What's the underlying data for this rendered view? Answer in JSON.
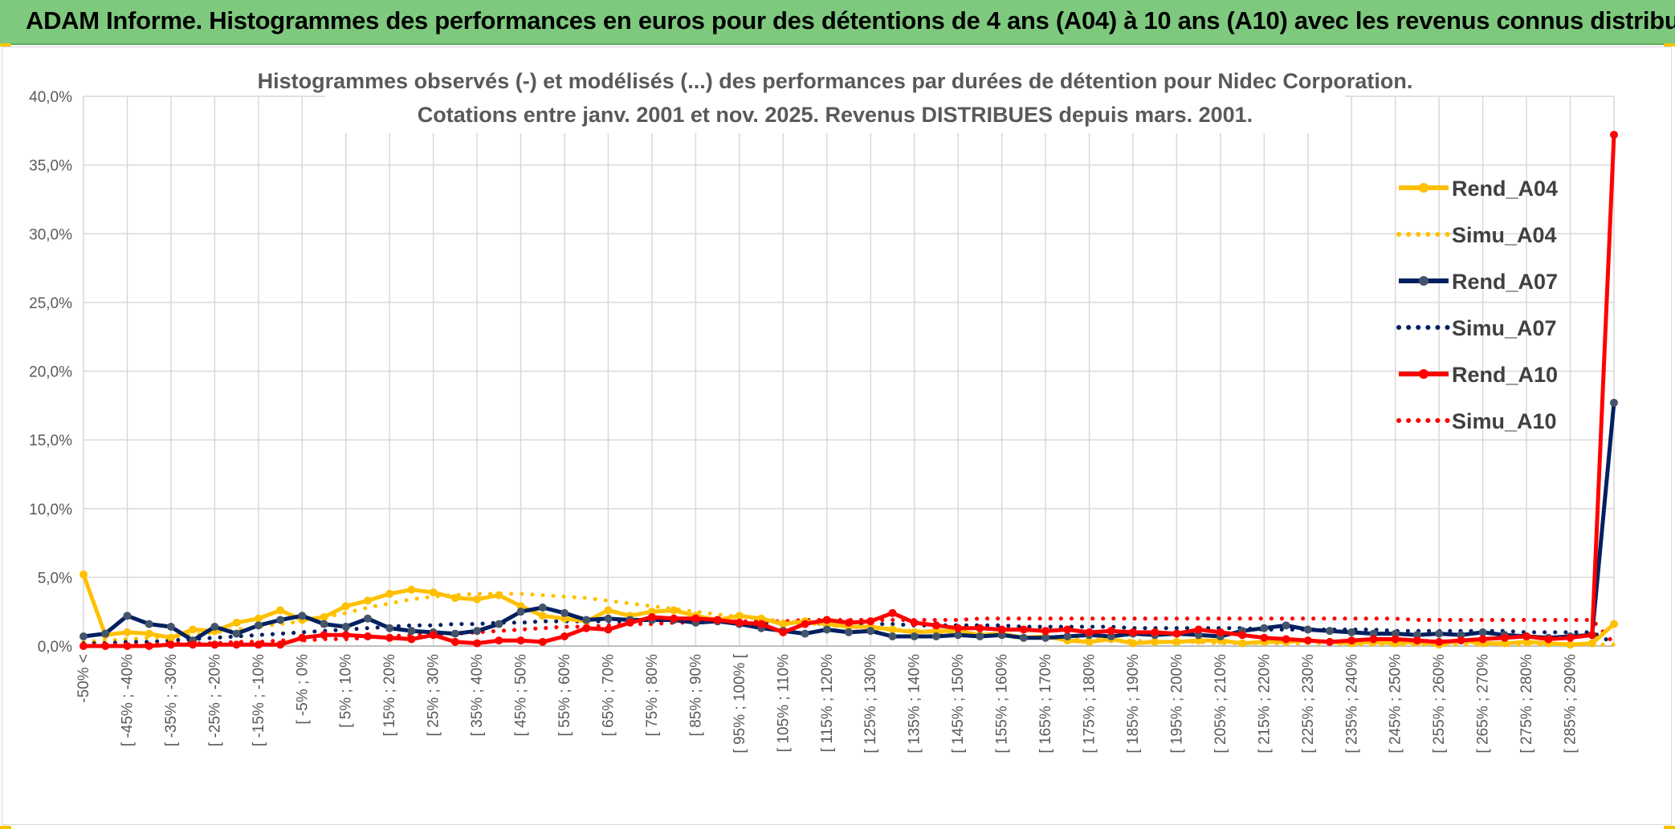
{
  "banner": {
    "title": "ADAM Informe. Histogrammes des performances en euros pour des détentions de 4 ans (A04) à 10 ans (A10) avec les revenus connus distribués"
  },
  "chart_data": {
    "type": "line",
    "title_line1": "Histogrammes observés (-) et modélisés (...) des performances par durées de détention pour Nidec Corporation.",
    "title_line2": "Cotations entre janv. 2001 et nov. 2025. Revenus DISTRIBUES depuis mars. 2001.",
    "ylim": [
      0,
      40
    ],
    "yticks": [
      "0,0%",
      "5,0%",
      "10,0%",
      "15,0%",
      "20,0%",
      "25,0%",
      "30,0%",
      "35,0%",
      "40,0%"
    ],
    "grid": true,
    "legend_position": "right",
    "x_labels": [
      "-50% <",
      "[ -45% ; -40%",
      "[ -35% ; -30%",
      "[ -25% ; -20%",
      "[ -15% ; -10%",
      "[ -5% ; 0%",
      "[ 5% ; 10%",
      "[ 15% ; 20%",
      "[ 25% ; 30%",
      "[ 35% ; 40%",
      "[ 45% ; 50%",
      "[ 55% ; 60%",
      "[ 65% ; 70%",
      "[ 75% ; 80%",
      "[ 85% ; 90%",
      "[ 95% ; 100% [",
      "[ 105% ; 110%",
      "[ 115% ; 120%",
      "[ 125% ; 130%",
      "[ 135% ; 140%",
      "[ 145% ; 150%",
      "[ 155% ; 160%",
      "[ 165% ; 170%",
      "[ 175% ; 180%",
      "[ 185% ; 190%",
      "[ 195% ; 200%",
      "[ 205% ; 210%",
      "[ 215% ; 220%",
      "[ 225% ; 230%",
      "[ 235% ; 240%",
      "[ 245% ; 250%",
      "[ 255% ; 260%",
      "[ 265% ; 270%",
      "[ 275% ; 280%",
      "[ 285% ; 290%"
    ],
    "series": [
      {
        "name": "Rend_A04",
        "color": "#ffc000",
        "style": "solid",
        "markers": true,
        "values": [
          5.2,
          0.8,
          1.0,
          0.9,
          0.6,
          1.2,
          1.1,
          1.7,
          2.0,
          2.6,
          1.9,
          2.1,
          2.9,
          3.3,
          3.8,
          4.1,
          3.9,
          3.5,
          3.4,
          3.7,
          2.9,
          2.2,
          2.0,
          1.8,
          2.6,
          2.2,
          2.5,
          2.6,
          2.2,
          1.9,
          2.2,
          2.0,
          1.6,
          1.8,
          1.6,
          1.4,
          1.4,
          1.2,
          1.0,
          1.1,
          1.1,
          0.8,
          0.9,
          0.6,
          0.7,
          0.4,
          0.3,
          0.5,
          0.2,
          0.3,
          0.3,
          0.4,
          0.4,
          0.2,
          0.3,
          0.3,
          0.4,
          0.3,
          0.2,
          0.3,
          0.2,
          0.3,
          0.1,
          0.4,
          0.2,
          0.2,
          0.3,
          0.2,
          0.1,
          0.2,
          1.6
        ]
      },
      {
        "name": "Simu_A04",
        "color": "#ffc000",
        "style": "dotted",
        "markers": false,
        "values": [
          0.3,
          0.4,
          0.5,
          0.6,
          0.7,
          0.8,
          1.0,
          1.2,
          1.4,
          1.6,
          1.8,
          2.1,
          2.4,
          2.8,
          3.1,
          3.4,
          3.6,
          3.7,
          3.8,
          3.8,
          3.8,
          3.7,
          3.6,
          3.5,
          3.3,
          3.1,
          2.9,
          2.7,
          2.5,
          2.3,
          2.1,
          2.0,
          1.8,
          1.7,
          1.5,
          1.4,
          1.3,
          1.2,
          1.1,
          1.0,
          0.9,
          0.8,
          0.7,
          0.6,
          0.6,
          0.5,
          0.5,
          0.4,
          0.4,
          0.3,
          0.3,
          0.3,
          0.2,
          0.2,
          0.2,
          0.2,
          0.2,
          0.2,
          0.1,
          0.1,
          0.1,
          0.1,
          0.1,
          0.1,
          0.1,
          0.1,
          0.1,
          0.1,
          0.1,
          0.1,
          0.1
        ]
      },
      {
        "name": "Rend_A07",
        "color": "#002060",
        "style": "solid",
        "markers": true,
        "values": [
          0.7,
          0.9,
          2.2,
          1.6,
          1.4,
          0.4,
          1.4,
          0.9,
          1.5,
          1.9,
          2.2,
          1.6,
          1.4,
          2.0,
          1.3,
          1.1,
          1.0,
          0.9,
          1.1,
          1.6,
          2.5,
          2.8,
          2.4,
          1.9,
          2.0,
          1.9,
          1.9,
          1.9,
          1.7,
          1.8,
          1.6,
          1.3,
          1.1,
          0.9,
          1.2,
          1.0,
          1.1,
          0.7,
          0.7,
          0.7,
          0.8,
          0.7,
          0.8,
          0.6,
          0.6,
          0.7,
          0.8,
          0.7,
          0.9,
          0.8,
          0.9,
          0.8,
          0.7,
          1.1,
          1.3,
          1.5,
          1.2,
          1.1,
          1.0,
          0.9,
          0.9,
          0.8,
          0.9,
          0.8,
          1.0,
          0.8,
          0.7,
          0.6,
          0.7,
          0.8,
          17.7
        ]
      },
      {
        "name": "Simu_A07",
        "color": "#002060",
        "style": "dotted",
        "markers": false,
        "values": [
          0.2,
          0.2,
          0.3,
          0.3,
          0.4,
          0.5,
          0.6,
          0.7,
          0.8,
          0.9,
          1.0,
          1.1,
          1.2,
          1.3,
          1.4,
          1.5,
          1.5,
          1.6,
          1.6,
          1.7,
          1.7,
          1.8,
          1.8,
          1.8,
          1.8,
          1.8,
          1.8,
          1.8,
          1.8,
          1.8,
          1.7,
          1.7,
          1.7,
          1.7,
          1.6,
          1.6,
          1.6,
          1.6,
          1.5,
          1.5,
          1.5,
          1.5,
          1.5,
          1.4,
          1.4,
          1.4,
          1.4,
          1.4,
          1.3,
          1.3,
          1.3,
          1.3,
          1.3,
          1.3,
          1.2,
          1.2,
          1.2,
          1.2,
          1.2,
          1.2,
          1.1,
          1.1,
          1.1,
          1.1,
          1.1,
          1.1,
          1.0,
          1.0,
          1.0,
          1.0,
          0.2
        ]
      },
      {
        "name": "Rend_A10",
        "color": "#ff0000",
        "style": "solid",
        "markers": true,
        "values": [
          0.0,
          0.0,
          0.0,
          0.0,
          0.1,
          0.1,
          0.1,
          0.1,
          0.1,
          0.1,
          0.6,
          0.8,
          0.8,
          0.7,
          0.6,
          0.5,
          0.8,
          0.3,
          0.2,
          0.4,
          0.4,
          0.3,
          0.7,
          1.3,
          1.2,
          1.7,
          2.1,
          2.0,
          2.0,
          1.9,
          1.7,
          1.6,
          1.0,
          1.6,
          1.9,
          1.7,
          1.8,
          2.4,
          1.7,
          1.5,
          1.3,
          1.3,
          1.2,
          1.2,
          1.1,
          1.2,
          1.0,
          1.1,
          1.0,
          1.0,
          0.9,
          1.2,
          1.0,
          0.8,
          0.6,
          0.5,
          0.4,
          0.3,
          0.4,
          0.5,
          0.5,
          0.4,
          0.3,
          0.4,
          0.5,
          0.6,
          0.7,
          0.5,
          0.6,
          0.8,
          37.2
        ]
      },
      {
        "name": "Simu_A10",
        "color": "#ff0000",
        "style": "dotted",
        "markers": false,
        "values": [
          0.1,
          0.1,
          0.1,
          0.1,
          0.2,
          0.2,
          0.2,
          0.3,
          0.3,
          0.4,
          0.4,
          0.5,
          0.5,
          0.6,
          0.7,
          0.8,
          0.8,
          0.9,
          1.0,
          1.1,
          1.2,
          1.3,
          1.4,
          1.4,
          1.5,
          1.6,
          1.6,
          1.7,
          1.7,
          1.8,
          1.8,
          1.8,
          1.8,
          1.9,
          1.9,
          1.9,
          1.9,
          1.9,
          1.9,
          1.9,
          1.9,
          2.0,
          2.0,
          2.0,
          2.0,
          2.0,
          2.0,
          2.0,
          2.0,
          2.0,
          2.0,
          2.0,
          2.0,
          2.0,
          2.0,
          2.0,
          2.0,
          2.0,
          2.0,
          2.0,
          2.0,
          1.9,
          1.9,
          1.9,
          1.9,
          1.9,
          1.9,
          1.9,
          1.9,
          1.9,
          0.2
        ]
      }
    ]
  }
}
